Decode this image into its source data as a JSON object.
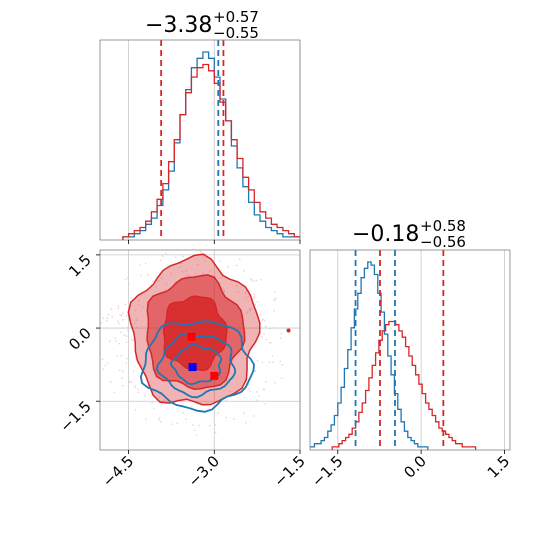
{
  "chart_data": {
    "type": "corner",
    "marginals": [
      {
        "parameter_index": 0,
        "title": {
          "main": "−3.38",
          "sup": "+0.57",
          "sub": "−0.55"
        },
        "xlim": [
          -5.0,
          -1.5
        ],
        "quantile_lines": {
          "blue": [
            -2.93
          ],
          "red": [
            -3.93,
            -2.84
          ]
        },
        "histograms": [
          {
            "color": "#1f77b4",
            "bin_width": 0.1,
            "x_start": -4.6,
            "counts": [
              1,
              1,
              2,
              3,
              5,
              7,
              11,
              16,
              22,
              31,
              40,
              48,
              55,
              58,
              60,
              58,
              52,
              45,
              38,
              30,
              23,
              17,
              12,
              8,
              6,
              4,
              3,
              2,
              1,
              1,
              1
            ]
          },
          {
            "color": "#d62728",
            "bin_width": 0.1,
            "x_start": -4.6,
            "counts": [
              1,
              2,
              3,
              4,
              6,
              9,
              13,
              18,
              25,
              32,
              40,
              47,
              52,
              55,
              56,
              54,
              50,
              44,
              38,
              32,
              26,
              20,
              16,
              12,
              9,
              7,
              5,
              4,
              3,
              2,
              1,
              1,
              1,
              1,
              1
            ]
          }
        ]
      },
      {
        "parameter_index": 1,
        "title": {
          "main": "−0.18",
          "sup": "+0.58",
          "sub": "−0.56"
        },
        "xlim": [
          -2.0,
          1.6
        ],
        "quantile_lines": {
          "blue": [
            -1.18,
            -0.47
          ],
          "red": [
            -0.74,
            0.4
          ]
        },
        "histograms": [
          {
            "color": "#1f77b4",
            "bin_width": 0.06,
            "x_start": -2.1,
            "counts": [
              1,
              1,
              1,
              2,
              2,
              3,
              4,
              6,
              8,
              11,
              15,
              20,
              26,
              32,
              39,
              45,
              50,
              55,
              58,
              60,
              59,
              56,
              50,
              44,
              37,
              30,
              24,
              18,
              13,
              9,
              6,
              4,
              3,
              2,
              1,
              1,
              1
            ]
          },
          {
            "color": "#d62728",
            "bin_width": 0.06,
            "x_start": -1.6,
            "counts": [
              1,
              1,
              2,
              3,
              4,
              5,
              7,
              9,
              12,
              15,
              19,
              23,
              27,
              31,
              35,
              38,
              40,
              41,
              41,
              40,
              38,
              36,
              33,
              30,
              27,
              24,
              21,
              18,
              15,
              13,
              11,
              9,
              7,
              6,
              5,
              4,
              3,
              2,
              2,
              1,
              1,
              1,
              1
            ]
          }
        ]
      }
    ],
    "joint": {
      "xlim": [
        -5.0,
        -1.5
      ],
      "ylim": [
        -2.5,
        1.6
      ],
      "contours": [
        {
          "color": "#d62728",
          "filled": true,
          "center": [
            -3.35,
            -0.1
          ],
          "levels": [
            {
              "rx": 1.1,
              "ry": 1.5
            },
            {
              "rx": 0.85,
              "ry": 1.15
            },
            {
              "rx": 0.55,
              "ry": 0.75
            }
          ]
        },
        {
          "color": "#1f77b4",
          "filled": false,
          "center": [
            -3.3,
            -0.75
          ],
          "levels": [
            {
              "rx": 0.95,
              "ry": 0.9
            },
            {
              "rx": 0.65,
              "ry": 0.62
            },
            {
              "rx": 0.42,
              "ry": 0.38
            }
          ]
        }
      ],
      "markers": [
        {
          "color": "#0000ff",
          "x": -3.38,
          "y": -0.8
        },
        {
          "color": "#ff0000",
          "x": -3.4,
          "y": -0.18
        },
        {
          "color": "#ff0000",
          "x": -3.0,
          "y": -0.98
        }
      ],
      "outlier_points": [
        {
          "color": "#d62728",
          "x": -1.7,
          "y": -0.05
        }
      ]
    },
    "x_axis_param0_ticks": [
      "−4.5",
      "−3.0",
      "−1.5"
    ],
    "x_axis_param0_values": [
      -4.5,
      -3.0,
      -1.5
    ],
    "y_axis_param1_ticks": [
      "1.5",
      "0.0",
      "−1.5"
    ],
    "y_axis_param1_values": [
      1.5,
      0.0,
      -1.5
    ],
    "x_axis_param1_ticks": [
      "−1.5",
      "0.0",
      "1.5"
    ],
    "x_axis_param1_values": [
      -1.5,
      0.0,
      1.5
    ],
    "grid": true
  }
}
